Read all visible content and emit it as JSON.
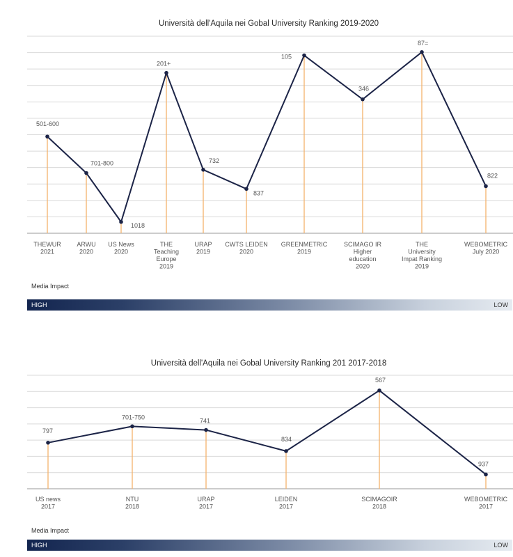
{
  "chart_data": [
    {
      "type": "line",
      "title": "Università dell'Aquila nei Gobal University Ranking 2019-2020",
      "grid": true,
      "categories": [
        "THEWUR 2021",
        "ARWU 2020",
        "US News 2020",
        "THE Teaching Europe 2019",
        "URAP 2019",
        "CWTS LEIDEN 2020",
        "GREENMETRIC 2019",
        "SCIMAGO IR Higher education 2020",
        "THE University Impat Ranking 2019",
        "WEBOMETRIC July 2020"
      ],
      "tick_labels": [
        [
          "THEWUR",
          "2021"
        ],
        [
          "ARWU",
          "2020"
        ],
        [
          "US News",
          "2020"
        ],
        [
          "THE",
          "Teaching",
          "Europe",
          "2019"
        ],
        [
          "URAP",
          "2019"
        ],
        [
          "CWTS LEIDEN",
          "2020"
        ],
        [
          "GREENMETRIC",
          "2019"
        ],
        [
          "SCIMAGO IR",
          "Higher",
          "education",
          "2020"
        ],
        [
          "THE",
          "University",
          "Impat Ranking",
          "2019"
        ],
        [
          "WEBOMETRIC",
          "July 2020"
        ]
      ],
      "data_labels": [
        "501-600",
        "701-800",
        "1018",
        "201+",
        "732",
        "837",
        "105",
        "346",
        "87=",
        "822"
      ],
      "values": [
        550,
        750,
        1018,
        201,
        732,
        837,
        105,
        346,
        87,
        822
      ],
      "ylim": [
        1080,
        0
      ],
      "y_inverted": true
    },
    {
      "type": "line",
      "title": "Università dell'Aquila nei Gobal University Ranking 201 2017-2018",
      "grid": true,
      "categories": [
        "US news 2017",
        "NTU 2018",
        "URAP 2017",
        "LEIDEN 2017",
        "SCIMAGOIR 2018",
        "WEBOMETRIC 2017"
      ],
      "tick_labels": [
        [
          "US news",
          "2017"
        ],
        [
          "NTU",
          "2018"
        ],
        [
          "URAP",
          "2017"
        ],
        [
          "LEIDEN",
          "2017"
        ],
        [
          "SCIMAGOIR",
          "2018"
        ],
        [
          "WEBOMETRIC",
          "2017"
        ]
      ],
      "data_labels": [
        "797",
        "701-750",
        "741",
        "834",
        "567",
        "937"
      ],
      "values": [
        797,
        725,
        741,
        834,
        567,
        937
      ],
      "ylim": [
        1000,
        500
      ],
      "y_inverted": true
    }
  ],
  "media_impact": {
    "caption": "Media Impact",
    "high_label": "HIGH",
    "low_label": "LOW"
  },
  "colors": {
    "line": "#1c2447",
    "drop_line": "#f5b26b",
    "grid": "#d9d9d9"
  }
}
